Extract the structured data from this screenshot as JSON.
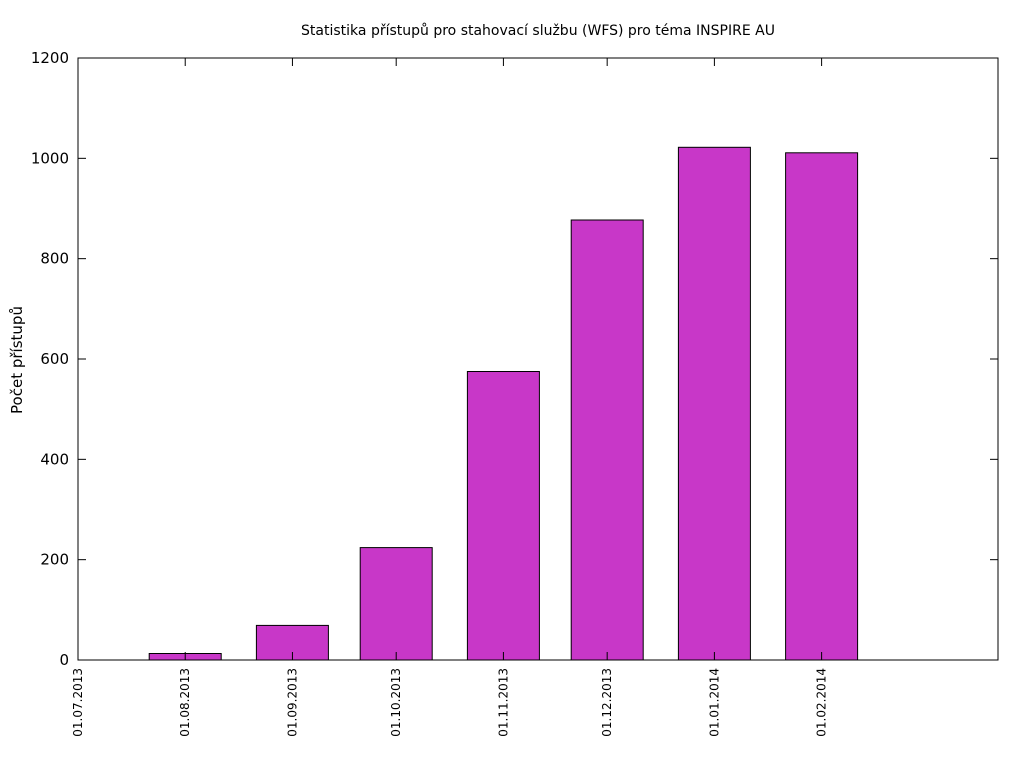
{
  "chart_data": {
    "type": "bar",
    "title": "Statistika přístupů pro stahovací službu (WFS) pro téma INSPIRE AU",
    "xlabel": "",
    "ylabel": "Počet přístupů",
    "ylim": [
      0,
      1200
    ],
    "yticks": [
      0,
      200,
      400,
      600,
      800,
      1000,
      1200
    ],
    "x_tick_labels": [
      "01.07.2013",
      "01.08.2013",
      "01.09.2013",
      "01.10.2013",
      "01.11.2013",
      "01.12.2013",
      "01.01.2014",
      "01.02.2014"
    ],
    "x_tick_days": [
      0,
      31,
      62,
      92,
      123,
      153,
      184,
      215
    ],
    "x_range_days": [
      0,
      266
    ],
    "categories": [
      "01.08.2013",
      "01.09.2013",
      "01.10.2013",
      "01.11.2013",
      "01.12.2013",
      "01.01.2014",
      "01.02.2014"
    ],
    "values": [
      13,
      69,
      224,
      575,
      877,
      1022,
      1011
    ],
    "bar_color": "#c837c8",
    "grid": false
  }
}
